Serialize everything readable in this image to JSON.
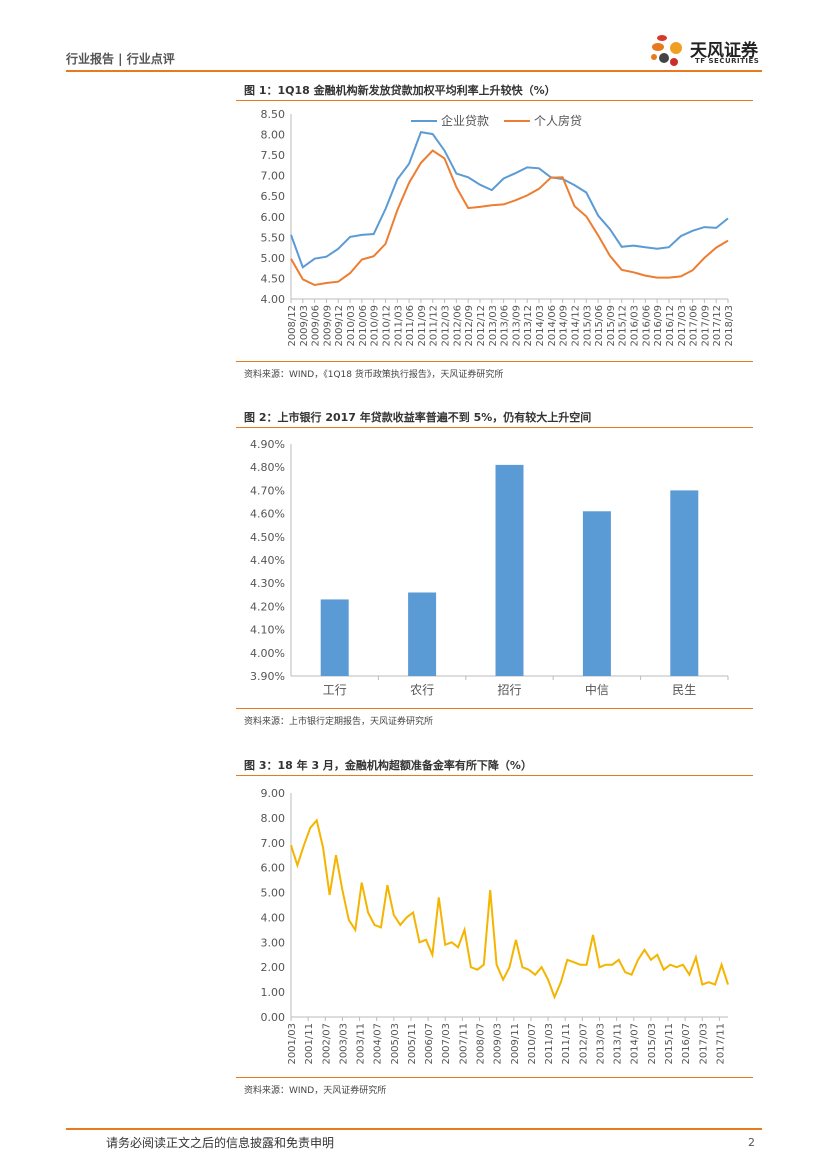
{
  "header": {
    "left": "行业报告 | 行业点评",
    "brand": "天风证券",
    "brand_en": "TF SECURITIES"
  },
  "footer": {
    "disclaimer": "请务必阅读正文之后的信息披露和免责申明",
    "page": "2"
  },
  "colors": {
    "accent": "#e87a1e",
    "blue": "#5b9bd5",
    "orange": "#ed7d31",
    "yellow": "#f4b400"
  },
  "figures": [
    {
      "title": "图 1：1Q18 金融机构新发放贷款加权平均利率上升较快（%）",
      "source": "资料来源：WIND，《1Q18 货币政策执行报告》，天风证券研究所"
    },
    {
      "title": "图 2：上市银行 2017 年贷款收益率普遍不到 5%，仍有较大上升空间",
      "source": "资料来源：上市银行定期报告，天风证券研究所"
    },
    {
      "title": "图 3：18 年 3 月，金融机构超额准备金率有所下降（%）",
      "source": "资料来源：WIND，天风证券研究所"
    }
  ],
  "chart_data": [
    {
      "type": "line",
      "title": "1Q18 金融机构新发放贷款加权平均利率上升较快（%）",
      "ylim": [
        4.0,
        8.5
      ],
      "yticks": [
        "8.50",
        "8.00",
        "7.50",
        "7.00",
        "6.50",
        "6.00",
        "5.50",
        "5.00",
        "4.50",
        "4.00"
      ],
      "x": [
        "2008/12",
        "2009/03",
        "2009/06",
        "2009/09",
        "2009/12",
        "2010/03",
        "2010/06",
        "2010/09",
        "2010/12",
        "2011/03",
        "2011/06",
        "2011/09",
        "2011/12",
        "2012/03",
        "2012/06",
        "2012/09",
        "2012/12",
        "2013/03",
        "2013/06",
        "2013/09",
        "2013/12",
        "2014/03",
        "2014/06",
        "2014/09",
        "2014/12",
        "2015/03",
        "2015/06",
        "2015/09",
        "2015/12",
        "2016/03",
        "2016/06",
        "2016/09",
        "2016/12",
        "2017/03",
        "2017/06",
        "2017/09",
        "2017/12",
        "2018/03"
      ],
      "xticks_shown": [
        "2008/12",
        "2009/03",
        "2009/06",
        "2009/09",
        "2009/12",
        "2010/03",
        "2010/06",
        "2010/09",
        "2010/12",
        "2011/03",
        "2011/06",
        "2011/09",
        "2011/12",
        "2012/03",
        "2012/06",
        "2012/09",
        "2012/12",
        "2013/03",
        "2013/06",
        "2013/09",
        "2013/12",
        "2014/03",
        "2014/06",
        "2014/09",
        "2014/12",
        "2015/03",
        "2015/06",
        "2015/09",
        "2015/12",
        "2016/03",
        "2016/06",
        "2016/09",
        "2016/12",
        "2017/03",
        "2017/06",
        "2017/09",
        "2017/12",
        "2018/03"
      ],
      "series": [
        {
          "name": "企业贷款",
          "values": [
            5.56,
            4.77,
            4.98,
            5.03,
            5.22,
            5.51,
            5.56,
            5.58,
            6.19,
            6.91,
            7.29,
            8.06,
            8.01,
            7.61,
            7.05,
            6.96,
            6.78,
            6.65,
            6.93,
            7.06,
            7.2,
            7.18,
            6.96,
            6.92,
            6.77,
            6.59,
            6.03,
            5.7,
            5.27,
            5.3,
            5.26,
            5.22,
            5.26,
            5.53,
            5.66,
            5.75,
            5.73,
            5.96
          ]
        },
        {
          "name": "个人房贷",
          "values": [
            4.98,
            4.48,
            4.34,
            4.39,
            4.42,
            4.63,
            4.96,
            5.04,
            5.34,
            6.16,
            6.83,
            7.31,
            7.61,
            7.42,
            6.72,
            6.21,
            6.24,
            6.28,
            6.3,
            6.4,
            6.52,
            6.68,
            6.95,
            6.96,
            6.26,
            6.01,
            5.55,
            5.05,
            4.71,
            4.65,
            4.57,
            4.52,
            4.52,
            4.55,
            4.7,
            5.0,
            5.25,
            5.42
          ]
        }
      ]
    },
    {
      "type": "bar",
      "title": "上市银行 2017 年贷款收益率普遍不到 5%，仍有较大上升空间",
      "ylim": [
        3.9,
        4.9
      ],
      "yticks": [
        "4.90%",
        "4.80%",
        "4.70%",
        "4.60%",
        "4.50%",
        "4.40%",
        "4.30%",
        "4.20%",
        "4.10%",
        "4.00%",
        "3.90%"
      ],
      "categories": [
        "工行",
        "农行",
        "招行",
        "中信",
        "民生"
      ],
      "values": [
        4.23,
        4.26,
        4.81,
        4.61,
        4.7
      ]
    },
    {
      "type": "line",
      "title": "18 年 3 月，金融机构超额准备金率有所下降（%）",
      "ylim": [
        0,
        9
      ],
      "yticks": [
        "9.00",
        "8.00",
        "7.00",
        "6.00",
        "5.00",
        "4.00",
        "3.00",
        "2.00",
        "1.00",
        "0.00"
      ],
      "xticks_shown": [
        "2001/03",
        "2001/11",
        "2002/07",
        "2003/03",
        "2003/11",
        "2004/07",
        "2005/03",
        "2005/11",
        "2006/07",
        "2007/03",
        "2007/11",
        "2008/07",
        "2009/03",
        "2009/11",
        "2010/07",
        "2011/03",
        "2011/11",
        "2012/07",
        "2013/03",
        "2013/11",
        "2014/07",
        "2015/03",
        "2015/11",
        "2016/07",
        "2017/03",
        "2017/11"
      ],
      "series": [
        {
          "name": "超额准备金率",
          "values": [
            6.9,
            6.1,
            6.9,
            7.6,
            7.9,
            6.8,
            4.9,
            6.5,
            5.1,
            3.9,
            3.5,
            5.4,
            4.2,
            3.7,
            3.6,
            5.3,
            4.1,
            3.7,
            4.0,
            4.2,
            3.0,
            3.1,
            2.5,
            4.8,
            2.9,
            3.0,
            2.8,
            3.5,
            2.0,
            1.9,
            2.1,
            5.1,
            2.1,
            1.5,
            2.0,
            3.1,
            2.0,
            1.9,
            1.7,
            2.0,
            1.5,
            0.8,
            1.4,
            2.3,
            2.2,
            2.1,
            2.1,
            3.3,
            2.0,
            2.1,
            2.1,
            2.3,
            1.8,
            1.7,
            2.3,
            2.7,
            2.3,
            2.5,
            1.9,
            2.1,
            2.0,
            2.1,
            1.7,
            2.4,
            1.3,
            1.4,
            1.3,
            2.1,
            1.3
          ]
        }
      ]
    }
  ]
}
